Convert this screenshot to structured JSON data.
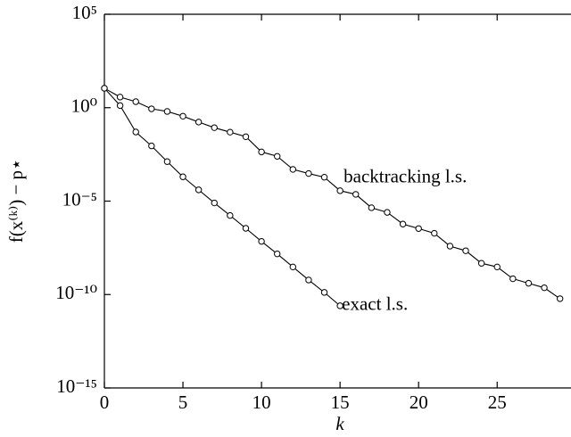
{
  "chart_data": {
    "type": "line",
    "xlabel": "k",
    "ylabel": "f(x⁽ᵏ⁾) − p⋆",
    "ylog": true,
    "xlim": [
      0,
      29.7
    ],
    "ylim": [
      1e-15,
      100000
    ],
    "xticks": [
      0,
      5,
      10,
      15,
      20,
      25
    ],
    "yticks": [
      {
        "value": 100000,
        "label": "10⁵"
      },
      {
        "value": 1,
        "label": "10⁰"
      },
      {
        "value": 1e-05,
        "label": "10⁻⁵"
      },
      {
        "value": 1e-10,
        "label": "10⁻¹⁰"
      },
      {
        "value": 1e-15,
        "label": "10⁻¹⁵"
      }
    ],
    "series": [
      {
        "name": "exact l.s.",
        "color": "#000000",
        "x": [
          0,
          1,
          2,
          3,
          4,
          5,
          6,
          7,
          8,
          9,
          10,
          11,
          12,
          13,
          14,
          15
        ],
        "values": [
          11,
          1.3,
          0.05,
          0.009,
          0.0013,
          0.0002,
          4e-05,
          8e-06,
          1.7e-06,
          3.5e-07,
          7e-08,
          1.5e-08,
          3e-09,
          6e-10,
          1.3e-10,
          2.5e-11
        ]
      },
      {
        "name": "backtracking l.s.",
        "color": "#000000",
        "x": [
          0,
          1,
          2,
          3,
          4,
          5,
          6,
          7,
          8,
          9,
          10,
          11,
          12,
          13,
          14,
          15,
          16,
          17,
          18,
          19,
          20,
          21,
          22,
          23,
          24,
          25,
          26,
          27,
          28,
          29
        ],
        "values": [
          11,
          3.7,
          2.1,
          0.87,
          0.63,
          0.35,
          0.17,
          0.085,
          0.049,
          0.028,
          0.0043,
          0.0025,
          0.0005,
          0.0003,
          0.00019,
          3.6e-05,
          2.3e-05,
          4.4e-06,
          2.5e-06,
          5.9e-07,
          3.4e-07,
          1.9e-07,
          3.9e-08,
          2.2e-08,
          4.7e-09,
          3e-09,
          7e-10,
          4e-10,
          2.3e-10,
          6e-11
        ]
      }
    ]
  }
}
